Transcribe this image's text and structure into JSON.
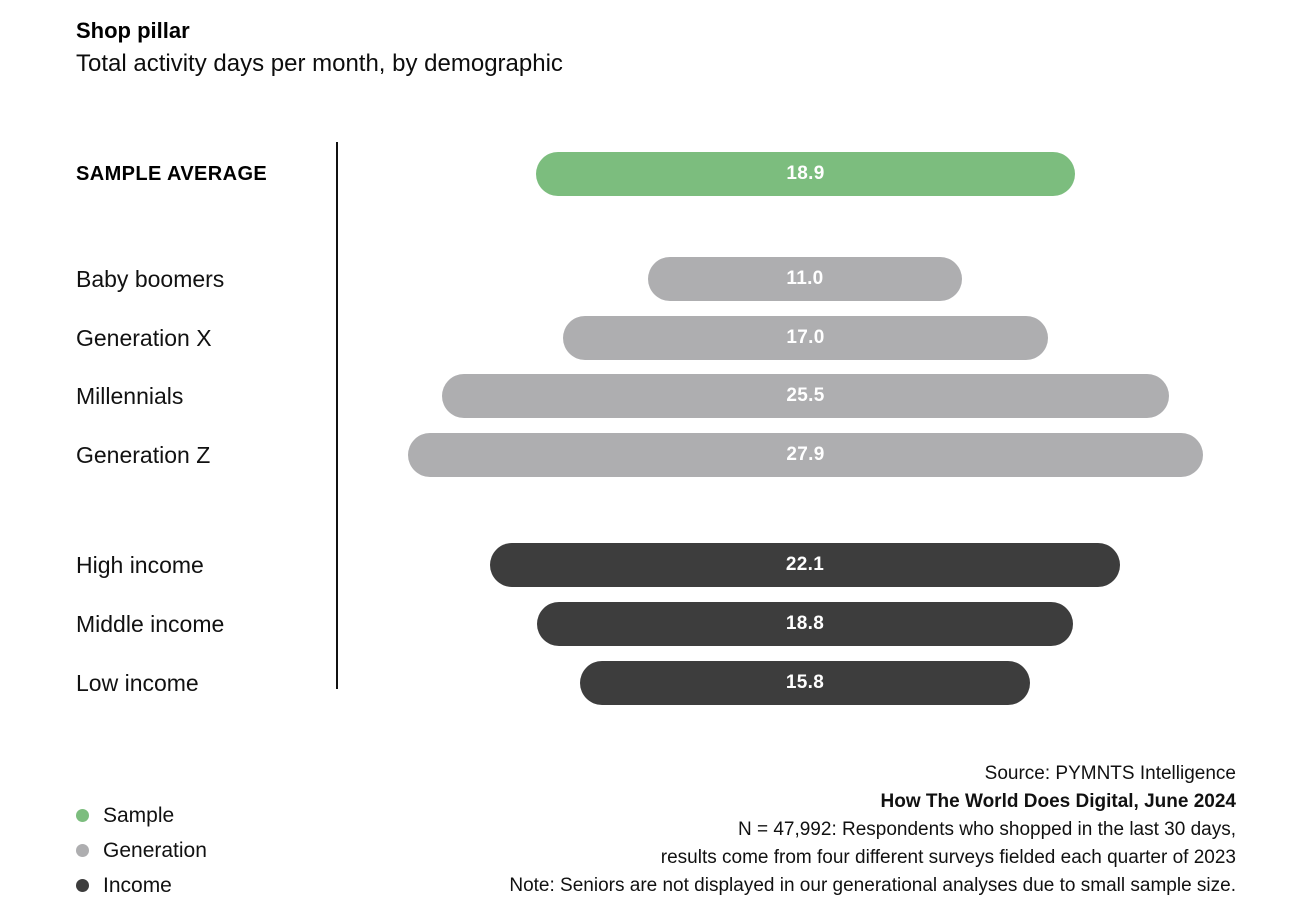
{
  "header": {
    "title": "Shop pillar",
    "subtitle": "Total activity days per month, by demographic"
  },
  "chart_data": {
    "type": "bar",
    "orientation": "horizontal-centered",
    "title": "Shop pillar",
    "subtitle": "Total activity days per month, by demographic",
    "value_unit": "activity days per month",
    "series": [
      {
        "group": "Sample",
        "label": "SAMPLE AVERAGE",
        "value": 18.9,
        "color": "#7CBD7E"
      },
      {
        "group": "Generation",
        "label": "Baby boomers",
        "value": 11.0,
        "color": "#AEAEB0"
      },
      {
        "group": "Generation",
        "label": "Generation X",
        "value": 17.0,
        "color": "#AEAEB0"
      },
      {
        "group": "Generation",
        "label": "Millennials",
        "value": 25.5,
        "color": "#AEAEB0"
      },
      {
        "group": "Generation",
        "label": "Generation Z",
        "value": 27.9,
        "color": "#AEAEB0"
      },
      {
        "group": "Income",
        "label": "High income",
        "value": 22.1,
        "color": "#3D3D3D"
      },
      {
        "group": "Income",
        "label": "Middle income",
        "value": 18.8,
        "color": "#3D3D3D"
      },
      {
        "group": "Income",
        "label": "Low income",
        "value": 15.8,
        "color": "#3D3D3D"
      }
    ],
    "legend": [
      {
        "label": "Sample",
        "color": "#7CBD7E"
      },
      {
        "label": "Generation",
        "color": "#AEAEB0"
      },
      {
        "label": "Income",
        "color": "#3D3D3D"
      }
    ],
    "legend_position": "bottom-left",
    "grid": false,
    "value_labels": "inside-center, white, one decimal"
  },
  "source": {
    "lines": [
      "Source: PYMNTS Intelligence",
      "How The World Does Digital, June 2024",
      "N = 47,992: Respondents who shopped in the last 30 days,",
      "results come from four different surveys fielded each quarter of 2023",
      "Note: Seniors are not displayed in our generational analyses due to small sample size."
    ],
    "bold_line_index": 1
  },
  "colors": {
    "sample": "#7CBD7E",
    "generation": "#AEAEB0",
    "income": "#3D3D3D",
    "axis": "#111111",
    "value_text": "#FFFFFF"
  }
}
